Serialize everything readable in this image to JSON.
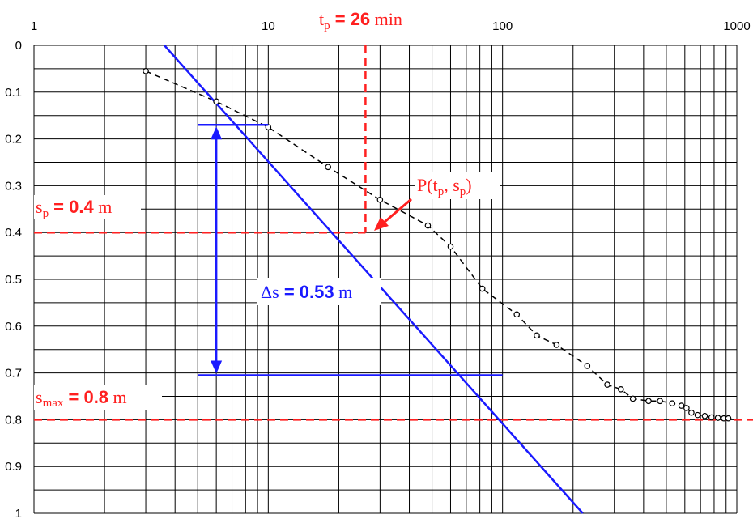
{
  "chart_data": {
    "type": "scatter",
    "x_scale": "log",
    "y_inverted": true,
    "xlim": [
      1,
      1000
    ],
    "ylim": [
      0,
      1
    ],
    "grid": true,
    "x_ticks": [
      {
        "value": 1,
        "label": "1"
      },
      {
        "value": 10,
        "label": "10"
      },
      {
        "value": 100,
        "label": "100"
      },
      {
        "value": 1000,
        "label": "1000"
      }
    ],
    "y_ticks": [
      {
        "value": 0,
        "label": "0"
      },
      {
        "value": 0.1,
        "label": "0.1"
      },
      {
        "value": 0.2,
        "label": "0.2"
      },
      {
        "value": 0.3,
        "label": "0.3"
      },
      {
        "value": 0.4,
        "label": "0.4"
      },
      {
        "value": 0.5,
        "label": "0.5"
      },
      {
        "value": 0.6,
        "label": "0.6"
      },
      {
        "value": 0.7,
        "label": "0.7"
      },
      {
        "value": 0.8,
        "label": "0.8"
      },
      {
        "value": 0.9,
        "label": "0.9"
      },
      {
        "value": 1,
        "label": "1"
      }
    ],
    "measurements": {
      "x": [
        3,
        6,
        10,
        18,
        30,
        48,
        60,
        82,
        115,
        140,
        170,
        230,
        280,
        320,
        360,
        420,
        470,
        530,
        580,
        610,
        640,
        680,
        730,
        780,
        830,
        880,
        920
      ],
      "y": [
        0.055,
        0.12,
        0.175,
        0.26,
        0.33,
        0.385,
        0.43,
        0.52,
        0.575,
        0.62,
        0.64,
        0.685,
        0.725,
        0.735,
        0.755,
        0.76,
        0.76,
        0.765,
        0.77,
        0.775,
        0.785,
        0.79,
        0.792,
        0.795,
        0.796,
        0.797,
        0.797
      ]
    },
    "straight_line": {
      "x": [
        3.6,
        220
      ],
      "y": [
        0,
        1
      ]
    },
    "vertical_ref": {
      "x": 26
    },
    "horizontal_refs": [
      {
        "y": 0.4
      },
      {
        "y": 0.8
      }
    ],
    "delta_s_bracket": {
      "x_from": 5,
      "x_top": 10,
      "x_bottom": 100,
      "y_top": 0.17,
      "y_bottom": 0.705
    },
    "annotations": {
      "tp": {
        "sym": "t",
        "sub": "p",
        "eq": " = 26",
        "unit": " min"
      },
      "sp": {
        "sym": "s",
        "sub": "p",
        "eq": " = 0.4",
        "unit": " m"
      },
      "smax": {
        "sym": "s",
        "sub": "max",
        "eq": " = 0.8",
        "unit": " m"
      },
      "ds": {
        "sym": "Δs",
        "eq": " = 0.53",
        "unit": " m"
      },
      "point": {
        "pre": "P(t",
        "sub1": "p",
        "mid": ", s",
        "sub2": "p",
        "post": ")"
      }
    },
    "colors": {
      "line": "#1a1aff",
      "ref": "#ff2020",
      "data": "#000000",
      "grid": "#000000"
    }
  }
}
